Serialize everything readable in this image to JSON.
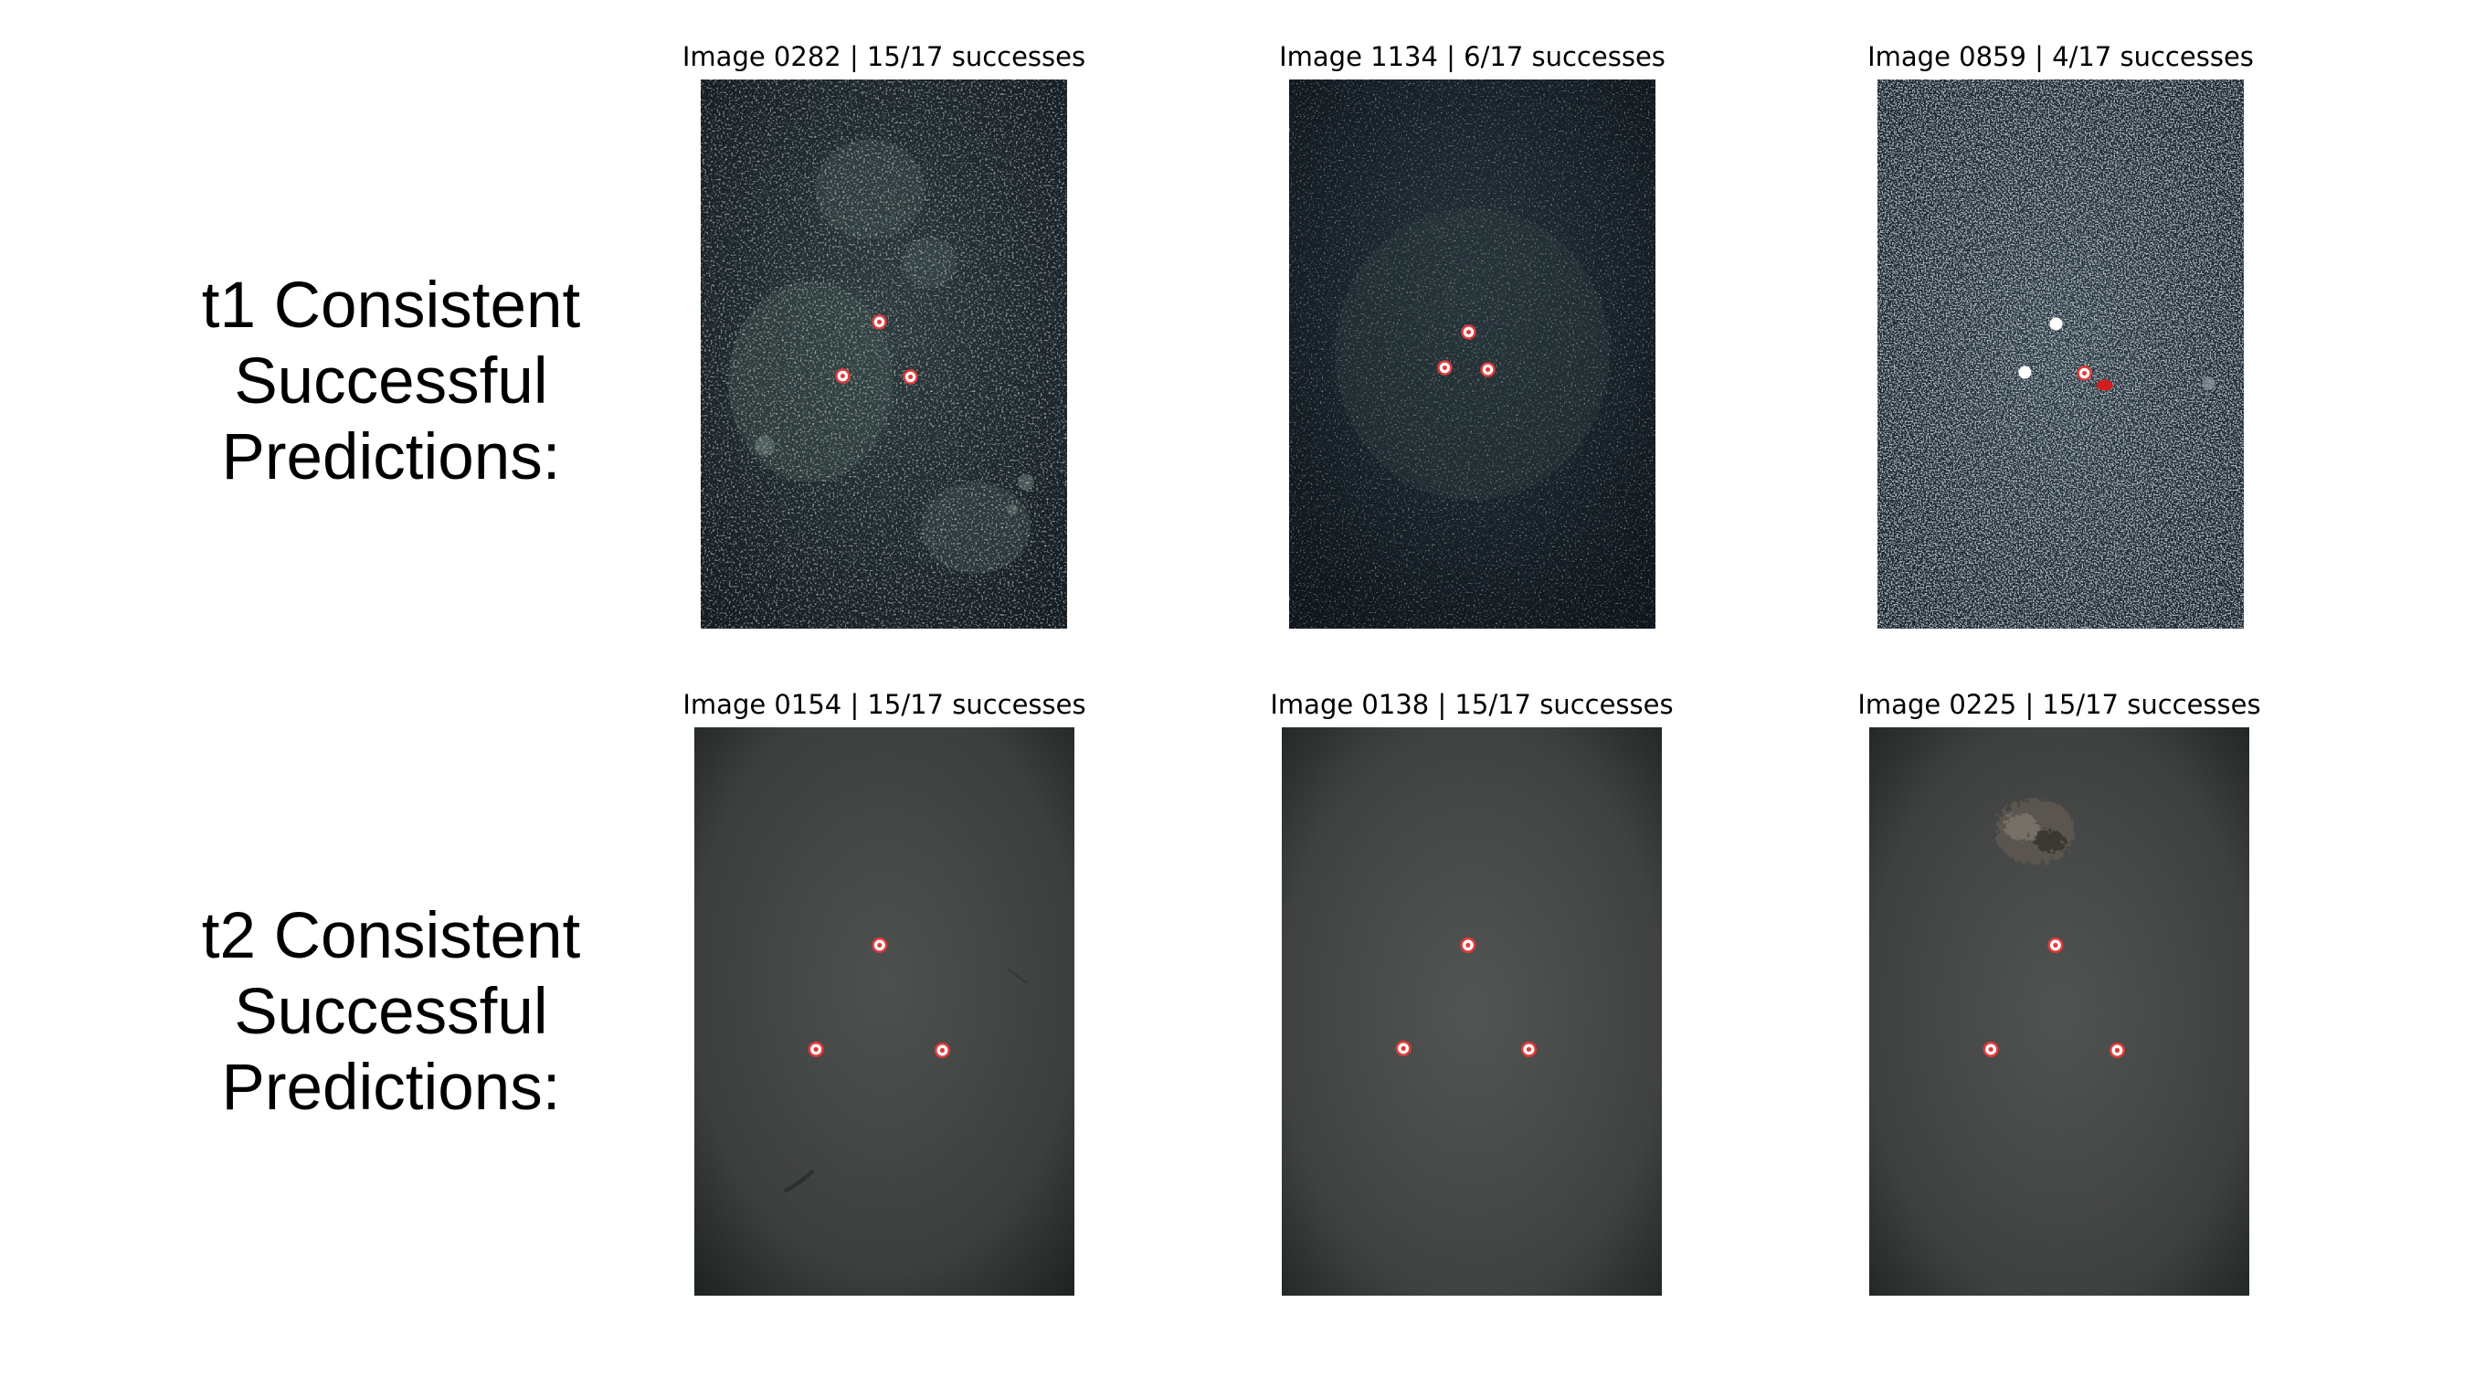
{
  "rows": [
    {
      "label": [
        "t1 Consistent",
        "Successful",
        "Predictions:"
      ],
      "panels": [
        {
          "title": "Image 0282 | 15/17 successes",
          "style": "rock"
        },
        {
          "title": "Image 1134 | 6/17 successes",
          "style": "dark"
        },
        {
          "title": "Image 0859 | 4/17 successes",
          "style": "speckle"
        }
      ]
    },
    {
      "label": [
        "t2 Consistent",
        "Successful",
        "Predictions:"
      ],
      "panels": [
        {
          "title": "Image 0154 | 15/17 successes",
          "style": "sand"
        },
        {
          "title": "Image 0138 | 15/17 successes",
          "style": "sand"
        },
        {
          "title": "Image 0225 | 15/17 successes",
          "style": "sand-object"
        }
      ]
    }
  ],
  "colors": {
    "marker_ring": "#e03a3a",
    "marker_fill": "#ffffff",
    "miss_marker": "#d11f1f"
  }
}
